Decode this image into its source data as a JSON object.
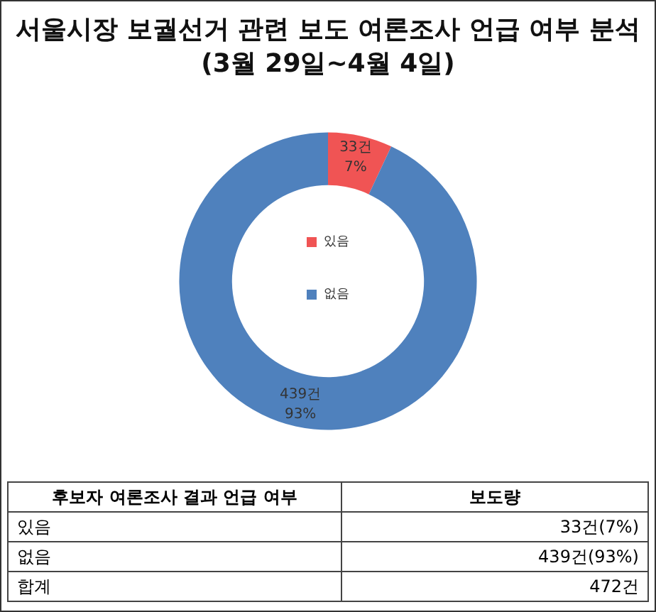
{
  "chart_data": {
    "type": "donut",
    "title": "서울시장 보궐선거 관련 보도 여론조사 언급 여부 분석",
    "subtitle": "(3월 29일~4월 4일)",
    "categories": [
      "있음",
      "없음"
    ],
    "values": [
      33,
      439
    ],
    "colors": [
      "#f05454",
      "#4f81bd"
    ],
    "value_labels": [
      "33건\n7%",
      "439건\n93%"
    ],
    "legend": "center",
    "annotations": [
      "후보자 여론조사 결과 언급 여부",
      "보도량",
      "있음",
      "33건(7%)",
      "없음",
      "439건(93%)",
      "합계",
      "472건"
    ]
  }
}
